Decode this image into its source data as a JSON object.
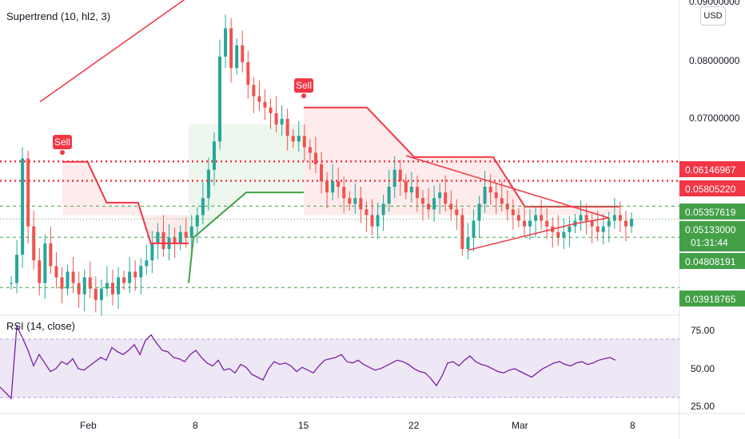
{
  "indicators": {
    "supertrend_label": "Supertrend (10, hl2, 3)",
    "rsi_label": "RSI (14, close)"
  },
  "currency": "USD",
  "price_axis": {
    "ticks": [
      "0.09000000",
      "0.08000000",
      "0.07000000"
    ],
    "badges": [
      {
        "label": "0.06146967",
        "color": "#f23645"
      },
      {
        "label": "0.05805220",
        "color": "#f23645"
      },
      {
        "label": "0.05357619",
        "color": "#43a047"
      },
      {
        "label": "0.05133000",
        "color": "#43a047",
        "sub": "01:31:44"
      },
      {
        "label": "0.04808191",
        "color": "#43a047"
      },
      {
        "label": "0.03918765",
        "color": "#43a047"
      }
    ]
  },
  "rsi_axis": {
    "ticks": [
      "75.00",
      "50.00",
      "25.00"
    ]
  },
  "time_axis": {
    "labels": [
      "Feb",
      "8",
      "15",
      "22",
      "Mar",
      "8"
    ]
  },
  "signals": [
    "Sell",
    "Sell"
  ],
  "colors": {
    "up": "#26a69a",
    "down": "#ef5350",
    "bear": "#f23645",
    "bull": "#43a047",
    "rsi": "#7b1fa2"
  },
  "chart_data": {
    "type": "line",
    "price": {
      "ylim": [
        0.035,
        0.09
      ],
      "close_series": [
        [
          0.04,
          0.045,
          0.062,
          0.05,
          0.044,
          0.04,
          0.047,
          0.043,
          0.041,
          0.039,
          0.042,
          0.04,
          0.038,
          0.041,
          0.039,
          0.037,
          0.039,
          0.04,
          0.038,
          0.041,
          0.04,
          0.042,
          0.041,
          0.043,
          0.044,
          0.047,
          0.049,
          0.046,
          0.048,
          0.047,
          0.049,
          0.048,
          0.05,
          0.052,
          0.055,
          0.06,
          0.065,
          0.08,
          0.085,
          0.078,
          0.082,
          0.079,
          0.075,
          0.073,
          0.072,
          0.071,
          0.07,
          0.068,
          0.069,
          0.066,
          0.065,
          0.066,
          0.064,
          0.063,
          0.061,
          0.058,
          0.056,
          0.058,
          0.057,
          0.055,
          0.054,
          0.055,
          0.053,
          0.052,
          0.05,
          0.052,
          0.054,
          0.057,
          0.06,
          0.058,
          0.056,
          0.057,
          0.055,
          0.054,
          0.053,
          0.055,
          0.056,
          0.054,
          0.053,
          0.052,
          0.046,
          0.048,
          0.051,
          0.054,
          0.057,
          0.056,
          0.055,
          0.054,
          0.053,
          0.052,
          0.051,
          0.05,
          0.051,
          0.052,
          0.051,
          0.05,
          0.049,
          0.048,
          0.049,
          0.05,
          0.051,
          0.052,
          0.051,
          0.05,
          0.049,
          0.05,
          0.051,
          0.052,
          0.051,
          0.05,
          0.0513
        ]
      ],
      "horizontal_levels": [
        0.06146967,
        0.0580522,
        0.05357619,
        0.05133,
        0.04808191,
        0.03918765
      ]
    },
    "supertrend": {
      "bearish_segments": [
        {
          "x": [
            "Jan 29",
            "Feb 6"
          ],
          "level_start": 0.0614,
          "level_end": 0.047
        },
        {
          "x": [
            "Feb 15",
            "Mar 7"
          ],
          "level_start": 0.071,
          "level_end": 0.0535
        }
      ],
      "bullish_segments": [
        {
          "x": [
            "Feb 6",
            "Feb 15"
          ],
          "level_start": 0.04,
          "level_end": 0.056
        }
      ]
    },
    "rsi": {
      "ylim": [
        20,
        85
      ],
      "upper": 70,
      "lower": 30,
      "values": [
        37,
        33,
        29,
        80,
        72,
        63,
        52,
        60,
        54,
        48,
        50,
        55,
        53,
        57,
        50,
        49,
        52,
        55,
        58,
        56,
        65,
        62,
        60,
        63,
        67,
        60,
        70,
        74,
        68,
        63,
        62,
        58,
        57,
        55,
        60,
        63,
        58,
        54,
        52,
        56,
        49,
        50,
        47,
        53,
        51,
        46,
        44,
        42,
        50,
        55,
        53,
        54,
        52,
        48,
        51,
        49,
        47,
        52,
        56,
        57,
        58,
        60,
        55,
        54,
        56,
        53,
        51,
        49,
        50,
        52,
        54,
        56,
        55,
        53,
        50,
        48,
        47,
        43,
        38,
        45,
        54,
        55,
        52,
        56,
        59,
        55,
        53,
        52,
        50,
        48,
        47,
        49,
        50,
        48,
        46,
        44,
        47,
        50,
        52,
        54,
        55,
        53,
        52,
        54,
        55,
        53,
        54,
        56,
        57,
        58,
        56
      ]
    }
  }
}
